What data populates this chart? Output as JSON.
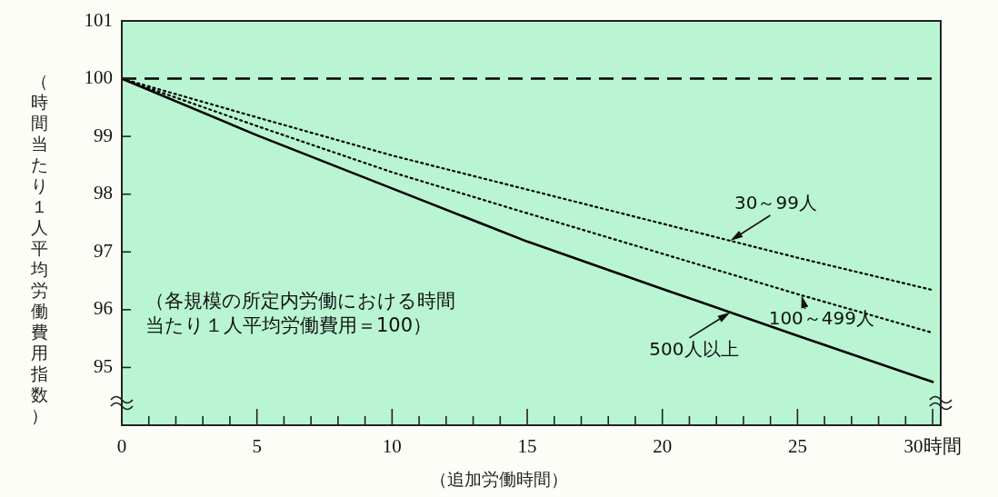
{
  "chart_data": {
    "type": "line",
    "ylabel": "（時間当たり１人平均労働費用指数）",
    "xlabel": "（追加労働時間）",
    "annotations": [
      "（各規模の所定内労働における時間当たり１人平均労働費用＝100）"
    ],
    "x": [
      0,
      5,
      10,
      15,
      20,
      25,
      30
    ],
    "series": [
      {
        "name": "30～99人",
        "color": "#000000",
        "line_style": "dotted",
        "values": [
          100,
          99.33,
          98.67,
          98.08,
          97.49,
          96.9,
          96.34
        ]
      },
      {
        "name": "100～499人",
        "color": "#000000",
        "line_style": "dotted",
        "values": [
          100,
          99.18,
          98.38,
          97.67,
          96.97,
          96.27,
          95.6
        ]
      },
      {
        "name": "500人以上",
        "color": "#000000",
        "line_style": "solid",
        "values": [
          100,
          99.02,
          98.1,
          97.18,
          96.36,
          95.55,
          94.75
        ]
      }
    ],
    "ref_lines": [
      {
        "axis": "y",
        "value": 100,
        "line_style": "dashed",
        "color": "#000000"
      }
    ],
    "xlim": [
      0,
      30.3
    ],
    "ylim": [
      94,
      101
    ],
    "xticks": [
      0,
      {
        "value": 1,
        "label": null
      },
      {
        "value": 2,
        "label": null
      },
      {
        "value": 3,
        "label": null
      },
      {
        "value": 4,
        "label": null
      },
      5,
      {
        "value": 6,
        "label": null
      },
      {
        "value": 7,
        "label": null
      },
      {
        "value": 8,
        "label": null
      },
      {
        "value": 9,
        "label": null
      },
      10,
      {
        "value": 11,
        "label": null
      },
      {
        "value": 12,
        "label": null
      },
      {
        "value": 13,
        "label": null
      },
      {
        "value": 14,
        "label": null
      },
      15,
      {
        "value": 16,
        "label": null
      },
      {
        "value": 17,
        "label": null
      },
      {
        "value": 18,
        "label": null
      },
      {
        "value": 19,
        "label": null
      },
      20,
      {
        "value": 21,
        "label": null
      },
      {
        "value": 22,
        "label": null
      },
      {
        "value": 23,
        "label": null
      },
      {
        "value": 24,
        "label": null
      },
      25,
      {
        "value": 26,
        "label": null
      },
      {
        "value": 27,
        "label": null
      },
      {
        "value": 28,
        "label": null
      },
      {
        "value": 29,
        "label": null
      },
      {
        "value": 30,
        "label": "30時間"
      }
    ],
    "yticks": [
      95,
      96,
      97,
      98,
      99,
      100,
      101
    ],
    "legend": false,
    "marker": "none"
  }
}
